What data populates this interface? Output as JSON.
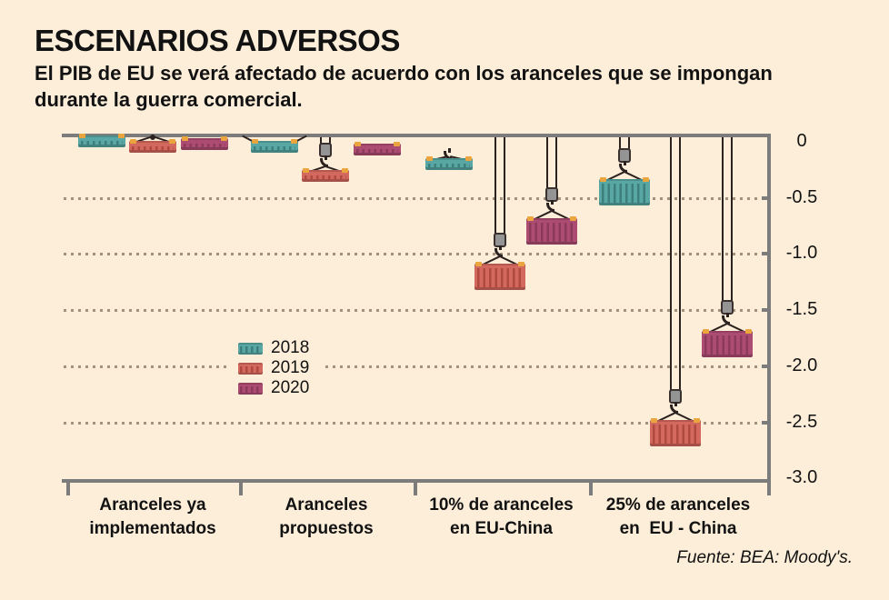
{
  "header": {
    "title": "ESCENARIOS ADVERSOS",
    "subtitle_lines": [
      "El PIB de EU se verá afectado de acuerdo con los aranceles que se impongan",
      "durante la guerra comercial."
    ]
  },
  "footer": {
    "source": "Fuente: BEA: Moody's."
  },
  "colors": {
    "background": "#fdeeda",
    "frame": "#7c7c7c",
    "grid_dots": "#a3907d",
    "text": "#121212",
    "cable": "#2b2220",
    "corner_fitting": "#eaa53e"
  },
  "chart_data": {
    "type": "bar",
    "variant": "hanging-shipping-containers",
    "title": "ESCENARIOS ADVERSOS",
    "xlabel": "",
    "ylabel": "",
    "ylim": [
      -3.0,
      0
    ],
    "y_ticks": [
      "0",
      "-0.5",
      "-1.0",
      "-1.5",
      "-2.0",
      "-2.5",
      "-3.0"
    ],
    "grid": "dotted-horizontal",
    "legend_position": "inside-center-left",
    "categories": [
      "Aranceles ya implementados",
      "Aranceles propuestos",
      "10% de aranceles en EU-China",
      "25% de aranceles en EU - China"
    ],
    "categories_lines": [
      [
        "Aranceles ya",
        "implementados"
      ],
      [
        "Aranceles",
        "propuestos"
      ],
      [
        "10% de aranceles",
        "en EU-China"
      ],
      [
        "25% de aranceles",
        "en  EU - China"
      ]
    ],
    "series": [
      {
        "name": "2018",
        "color": "#58a7a5",
        "rib_color": "#3c7f7d",
        "values": [
          -0.05,
          -0.1,
          -0.25,
          -0.45
        ]
      },
      {
        "name": "2019",
        "color": "#d3685e",
        "rib_color": "#af4a41",
        "values": [
          -0.1,
          -0.3,
          -1.2,
          -2.6
        ]
      },
      {
        "name": "2020",
        "color": "#ad4c72",
        "rib_color": "#8c3a5a",
        "values": [
          -0.07,
          -0.12,
          -0.8,
          -1.8
        ]
      }
    ]
  }
}
